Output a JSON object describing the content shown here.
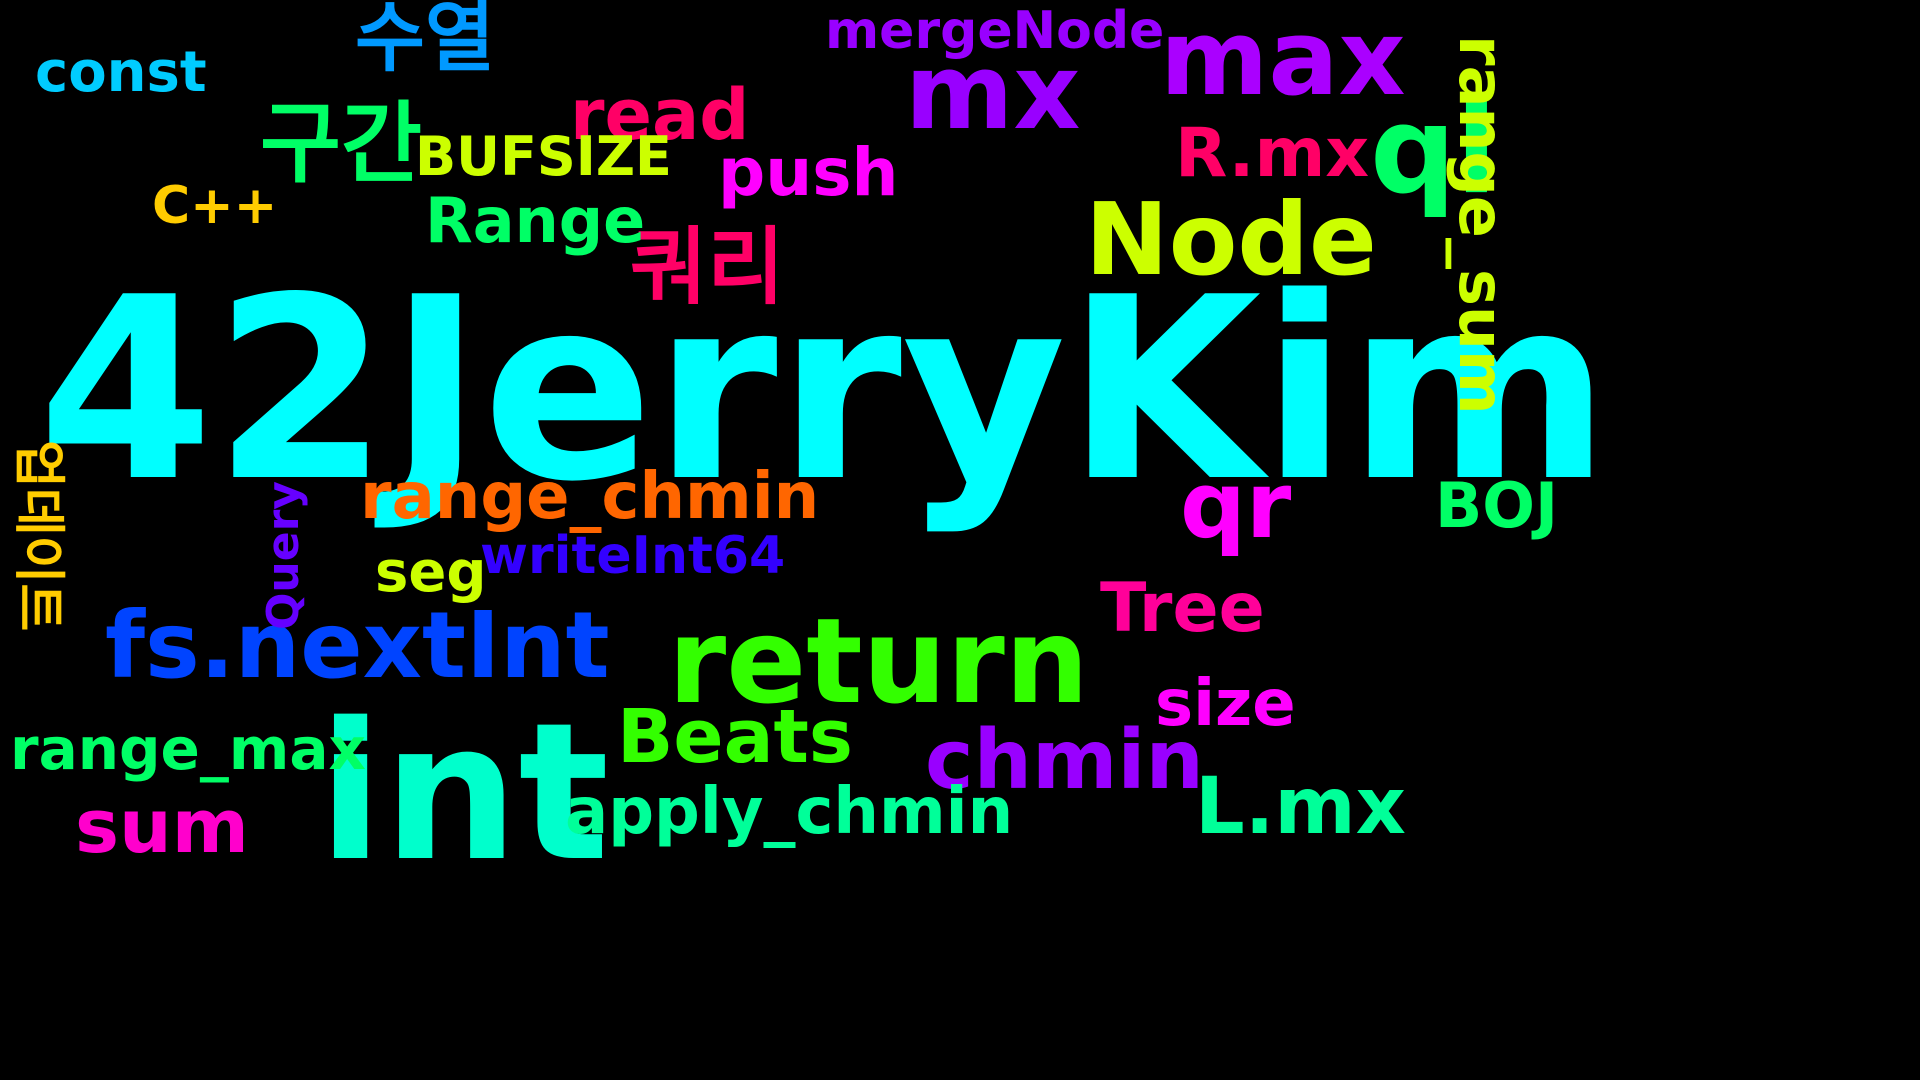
{
  "cloud": {
    "words": [
      {
        "text": "42JerryKim",
        "color": "#00ffff"
      },
      {
        "text": "int",
        "color": "#00ffcc"
      },
      {
        "text": "return",
        "color": "#33ff00"
      },
      {
        "text": "fs.nextInt",
        "color": "#0044ff"
      },
      {
        "text": "max",
        "color": "#aa00ff"
      },
      {
        "text": "mx",
        "color": "#9900ff"
      },
      {
        "text": "ql",
        "color": "#00ff66"
      },
      {
        "text": "qr",
        "color": "#ff00ff"
      },
      {
        "text": "Node",
        "color": "#ccff00"
      },
      {
        "text": "구간",
        "color": "#00ff66"
      },
      {
        "text": "쿼리",
        "color": "#ff0066"
      },
      {
        "text": "수열",
        "color": "#0099ff"
      },
      {
        "text": "read",
        "color": "#ff0066"
      },
      {
        "text": "chmin",
        "color": "#9900ff"
      },
      {
        "text": "L.mx",
        "color": "#00ff99"
      },
      {
        "text": "Beats",
        "color": "#33ff00"
      },
      {
        "text": "sum",
        "color": "#ff00cc"
      },
      {
        "text": "apply_chmin",
        "color": "#00ff99"
      },
      {
        "text": "range_chmin",
        "color": "#ff6600"
      },
      {
        "text": "R.mx",
        "color": "#ff0066"
      },
      {
        "text": "range_sum",
        "color": "#ccff00"
      },
      {
        "text": "Range",
        "color": "#00ff66"
      },
      {
        "text": "push",
        "color": "#ff00ff"
      },
      {
        "text": "mergeNode",
        "color": "#9900ff"
      },
      {
        "text": "range_max",
        "color": "#00ff66"
      },
      {
        "text": "Tree",
        "color": "#ff0099"
      },
      {
        "text": "size",
        "color": "#ff00ff"
      },
      {
        "text": "writeInt64",
        "color": "#3300ff"
      },
      {
        "text": "BUFSIZE",
        "color": "#ccff00"
      },
      {
        "text": "seg",
        "color": "#ccff00"
      },
      {
        "text": "const",
        "color": "#00ccff"
      },
      {
        "text": "C++",
        "color": "#ffcc00"
      },
      {
        "text": "BOJ",
        "color": "#00ff66"
      },
      {
        "text": "업데이트",
        "color": "#ffcc00"
      },
      {
        "text": "Query",
        "color": "#6600ff"
      }
    ]
  }
}
